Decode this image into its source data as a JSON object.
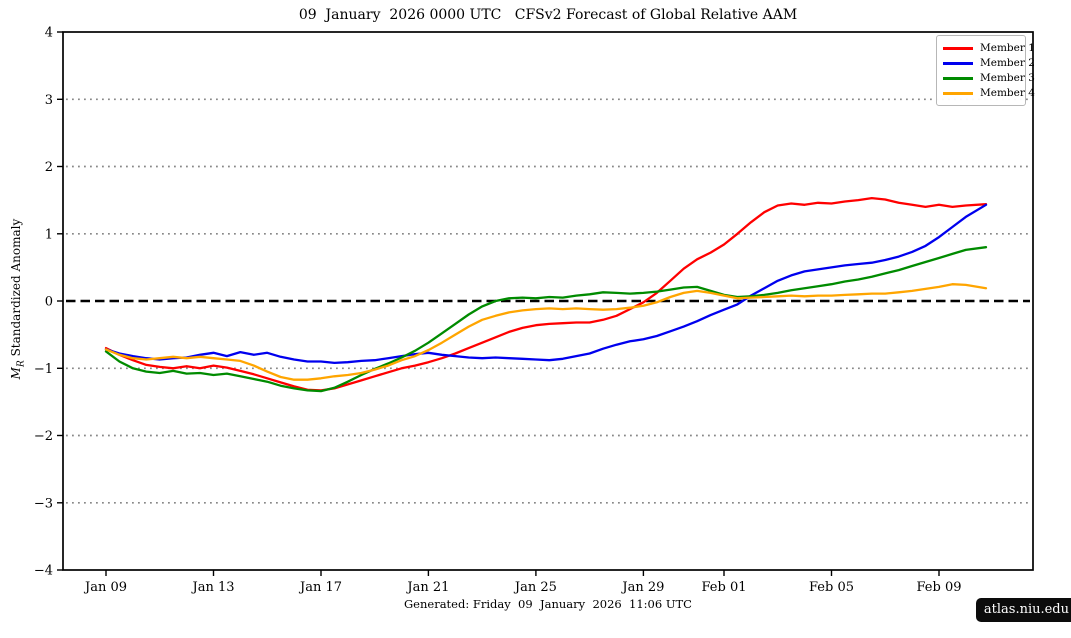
{
  "title": "09  January  2026 0000 UTC   CFSv2 Forecast of Global Relative AAM",
  "footer": "Generated: Friday  09  January  2026  11:06 UTC",
  "watermark": "atlas.niu.edu",
  "ylabel": {
    "symbol": "M",
    "subscript": "R",
    "rest": " Standardized Anomaly"
  },
  "chart_data": {
    "type": "line",
    "title": "09  January  2026 0000 UTC   CFSv2 Forecast of Global Relative AAM",
    "xlabel": "",
    "ylabel": "M_R Standardized Anomaly",
    "x_unit": "days since Jan 09 (0000 UTC)",
    "xlim_days": [
      -1.6,
      34.5
    ],
    "ylim": [
      -4,
      4
    ],
    "grid": "dotted horizontal at -3,-2,-1,1,2,3; dashed black at 0",
    "grid_levels": [
      -3,
      -2,
      -1,
      1,
      2,
      3
    ],
    "zero_level": 0,
    "grid_color": "#888888",
    "zero_line_color": "#000000",
    "frame_color": "#000000",
    "legend_position": "top-right",
    "xticks": [
      {
        "day": 0,
        "label": "Jan 09"
      },
      {
        "day": 4,
        "label": "Jan 13"
      },
      {
        "day": 8,
        "label": "Jan 17"
      },
      {
        "day": 12,
        "label": "Jan 21"
      },
      {
        "day": 16,
        "label": "Jan 25"
      },
      {
        "day": 20,
        "label": "Jan 29"
      },
      {
        "day": 23,
        "label": "Feb 01"
      },
      {
        "day": 27,
        "label": "Feb 05"
      },
      {
        "day": 31,
        "label": "Feb 09"
      }
    ],
    "yticks": [
      {
        "v": -4,
        "label": "−4"
      },
      {
        "v": -3,
        "label": "−3"
      },
      {
        "v": -2,
        "label": "−2"
      },
      {
        "v": -1,
        "label": "−1"
      },
      {
        "v": 0,
        "label": "0"
      },
      {
        "v": 1,
        "label": "1"
      },
      {
        "v": 2,
        "label": "2"
      },
      {
        "v": 3,
        "label": "3"
      },
      {
        "v": 4,
        "label": "4"
      }
    ],
    "series": [
      {
        "name": "Member 1",
        "color": "#ff0000",
        "points": [
          [
            0,
            -0.7
          ],
          [
            0.5,
            -0.8
          ],
          [
            1,
            -0.88
          ],
          [
            1.5,
            -0.95
          ],
          [
            2,
            -0.98
          ],
          [
            2.5,
            -1.0
          ],
          [
            3,
            -0.97
          ],
          [
            3.5,
            -1.0
          ],
          [
            4,
            -0.96
          ],
          [
            4.5,
            -0.99
          ],
          [
            5,
            -1.04
          ],
          [
            5.5,
            -1.09
          ],
          [
            6,
            -1.15
          ],
          [
            6.5,
            -1.21
          ],
          [
            7,
            -1.27
          ],
          [
            7.5,
            -1.32
          ],
          [
            8,
            -1.33
          ],
          [
            8.5,
            -1.3
          ],
          [
            9,
            -1.24
          ],
          [
            9.5,
            -1.18
          ],
          [
            10,
            -1.12
          ],
          [
            10.5,
            -1.06
          ],
          [
            11,
            -1.0
          ],
          [
            11.5,
            -0.96
          ],
          [
            12,
            -0.91
          ],
          [
            12.5,
            -0.85
          ],
          [
            13,
            -0.78
          ],
          [
            13.5,
            -0.7
          ],
          [
            14,
            -0.62
          ],
          [
            14.5,
            -0.54
          ],
          [
            15,
            -0.46
          ],
          [
            15.5,
            -0.4
          ],
          [
            16,
            -0.36
          ],
          [
            16.5,
            -0.34
          ],
          [
            17,
            -0.33
          ],
          [
            17.5,
            -0.32
          ],
          [
            18,
            -0.32
          ],
          [
            18.5,
            -0.28
          ],
          [
            19,
            -0.22
          ],
          [
            19.5,
            -0.12
          ],
          [
            20,
            -0.02
          ],
          [
            20.5,
            0.12
          ],
          [
            21,
            0.3
          ],
          [
            21.5,
            0.48
          ],
          [
            22,
            0.62
          ],
          [
            22.5,
            0.72
          ],
          [
            23,
            0.84
          ],
          [
            23.5,
            1.0
          ],
          [
            24,
            1.17
          ],
          [
            24.5,
            1.32
          ],
          [
            25,
            1.42
          ],
          [
            25.5,
            1.45
          ],
          [
            26,
            1.43
          ],
          [
            26.5,
            1.46
          ],
          [
            27,
            1.45
          ],
          [
            27.5,
            1.48
          ],
          [
            28,
            1.5
          ],
          [
            28.5,
            1.53
          ],
          [
            29,
            1.51
          ],
          [
            29.5,
            1.46
          ],
          [
            30,
            1.43
          ],
          [
            30.5,
            1.4
          ],
          [
            31,
            1.43
          ],
          [
            31.5,
            1.4
          ],
          [
            32,
            1.42
          ],
          [
            32.75,
            1.44
          ]
        ]
      },
      {
        "name": "Member 2",
        "color": "#0000ee",
        "points": [
          [
            0,
            -0.72
          ],
          [
            0.5,
            -0.78
          ],
          [
            1,
            -0.82
          ],
          [
            1.5,
            -0.85
          ],
          [
            2,
            -0.87
          ],
          [
            2.5,
            -0.85
          ],
          [
            3,
            -0.84
          ],
          [
            3.5,
            -0.8
          ],
          [
            4,
            -0.77
          ],
          [
            4.5,
            -0.82
          ],
          [
            5,
            -0.76
          ],
          [
            5.5,
            -0.8
          ],
          [
            6,
            -0.77
          ],
          [
            6.5,
            -0.83
          ],
          [
            7,
            -0.87
          ],
          [
            7.5,
            -0.9
          ],
          [
            8,
            -0.9
          ],
          [
            8.5,
            -0.92
          ],
          [
            9,
            -0.91
          ],
          [
            9.5,
            -0.89
          ],
          [
            10,
            -0.88
          ],
          [
            10.5,
            -0.85
          ],
          [
            11,
            -0.82
          ],
          [
            11.5,
            -0.79
          ],
          [
            12,
            -0.77
          ],
          [
            12.5,
            -0.8
          ],
          [
            13,
            -0.82
          ],
          [
            13.5,
            -0.84
          ],
          [
            14,
            -0.85
          ],
          [
            14.5,
            -0.84
          ],
          [
            15,
            -0.85
          ],
          [
            15.5,
            -0.86
          ],
          [
            16,
            -0.87
          ],
          [
            16.5,
            -0.88
          ],
          [
            17,
            -0.86
          ],
          [
            17.5,
            -0.82
          ],
          [
            18,
            -0.78
          ],
          [
            18.5,
            -0.71
          ],
          [
            19,
            -0.65
          ],
          [
            19.5,
            -0.6
          ],
          [
            20,
            -0.57
          ],
          [
            20.5,
            -0.52
          ],
          [
            21,
            -0.45
          ],
          [
            21.5,
            -0.38
          ],
          [
            22,
            -0.3
          ],
          [
            22.5,
            -0.21
          ],
          [
            23,
            -0.13
          ],
          [
            23.5,
            -0.05
          ],
          [
            24,
            0.08
          ],
          [
            24.5,
            0.19
          ],
          [
            25,
            0.3
          ],
          [
            25.5,
            0.38
          ],
          [
            26,
            0.44
          ],
          [
            26.5,
            0.47
          ],
          [
            27,
            0.5
          ],
          [
            27.5,
            0.53
          ],
          [
            28,
            0.55
          ],
          [
            28.5,
            0.57
          ],
          [
            29,
            0.61
          ],
          [
            29.5,
            0.66
          ],
          [
            30,
            0.73
          ],
          [
            30.5,
            0.82
          ],
          [
            31,
            0.95
          ],
          [
            31.5,
            1.1
          ],
          [
            32,
            1.25
          ],
          [
            32.75,
            1.43
          ]
        ]
      },
      {
        "name": "Member 3",
        "color": "#008b00",
        "points": [
          [
            0,
            -0.75
          ],
          [
            0.5,
            -0.9
          ],
          [
            1,
            -1.0
          ],
          [
            1.5,
            -1.05
          ],
          [
            2,
            -1.07
          ],
          [
            2.5,
            -1.04
          ],
          [
            3,
            -1.08
          ],
          [
            3.5,
            -1.07
          ],
          [
            4,
            -1.1
          ],
          [
            4.5,
            -1.08
          ],
          [
            5,
            -1.12
          ],
          [
            5.5,
            -1.16
          ],
          [
            6,
            -1.2
          ],
          [
            6.5,
            -1.26
          ],
          [
            7,
            -1.3
          ],
          [
            7.5,
            -1.33
          ],
          [
            8,
            -1.34
          ],
          [
            8.5,
            -1.29
          ],
          [
            9,
            -1.2
          ],
          [
            9.5,
            -1.1
          ],
          [
            10,
            -1.01
          ],
          [
            10.5,
            -0.93
          ],
          [
            11,
            -0.84
          ],
          [
            11.5,
            -0.74
          ],
          [
            12,
            -0.62
          ],
          [
            12.5,
            -0.48
          ],
          [
            13,
            -0.34
          ],
          [
            13.5,
            -0.2
          ],
          [
            14,
            -0.08
          ],
          [
            14.5,
            0.0
          ],
          [
            15,
            0.04
          ],
          [
            15.5,
            0.05
          ],
          [
            16,
            0.04
          ],
          [
            16.5,
            0.06
          ],
          [
            17,
            0.05
          ],
          [
            17.5,
            0.08
          ],
          [
            18,
            0.1
          ],
          [
            18.5,
            0.13
          ],
          [
            19,
            0.12
          ],
          [
            19.5,
            0.11
          ],
          [
            20,
            0.12
          ],
          [
            20.5,
            0.14
          ],
          [
            21,
            0.17
          ],
          [
            21.5,
            0.2
          ],
          [
            22,
            0.21
          ],
          [
            22.5,
            0.15
          ],
          [
            23,
            0.09
          ],
          [
            23.5,
            0.06
          ],
          [
            24,
            0.07
          ],
          [
            24.5,
            0.09
          ],
          [
            25,
            0.12
          ],
          [
            25.5,
            0.16
          ],
          [
            26,
            0.19
          ],
          [
            26.5,
            0.22
          ],
          [
            27,
            0.25
          ],
          [
            27.5,
            0.29
          ],
          [
            28,
            0.32
          ],
          [
            28.5,
            0.36
          ],
          [
            29,
            0.41
          ],
          [
            29.5,
            0.46
          ],
          [
            30,
            0.52
          ],
          [
            30.5,
            0.58
          ],
          [
            31,
            0.64
          ],
          [
            31.5,
            0.7
          ],
          [
            32,
            0.76
          ],
          [
            32.75,
            0.8
          ]
        ]
      },
      {
        "name": "Member 4",
        "color": "#ffa500",
        "points": [
          [
            0,
            -0.72
          ],
          [
            0.5,
            -0.8
          ],
          [
            1,
            -0.85
          ],
          [
            1.5,
            -0.87
          ],
          [
            2,
            -0.85
          ],
          [
            2.5,
            -0.83
          ],
          [
            3,
            -0.85
          ],
          [
            3.5,
            -0.83
          ],
          [
            4,
            -0.85
          ],
          [
            4.5,
            -0.87
          ],
          [
            5,
            -0.89
          ],
          [
            5.5,
            -0.96
          ],
          [
            6,
            -1.05
          ],
          [
            6.5,
            -1.13
          ],
          [
            7,
            -1.17
          ],
          [
            7.5,
            -1.17
          ],
          [
            8,
            -1.15
          ],
          [
            8.5,
            -1.12
          ],
          [
            9,
            -1.1
          ],
          [
            9.5,
            -1.07
          ],
          [
            10,
            -1.02
          ],
          [
            10.5,
            -0.96
          ],
          [
            11,
            -0.88
          ],
          [
            11.5,
            -0.82
          ],
          [
            12,
            -0.73
          ],
          [
            12.5,
            -0.62
          ],
          [
            13,
            -0.5
          ],
          [
            13.5,
            -0.38
          ],
          [
            14,
            -0.28
          ],
          [
            14.5,
            -0.22
          ],
          [
            15,
            -0.17
          ],
          [
            15.5,
            -0.14
          ],
          [
            16,
            -0.12
          ],
          [
            16.5,
            -0.11
          ],
          [
            17,
            -0.12
          ],
          [
            17.5,
            -0.11
          ],
          [
            18,
            -0.12
          ],
          [
            18.5,
            -0.13
          ],
          [
            19,
            -0.12
          ],
          [
            19.5,
            -0.1
          ],
          [
            20,
            -0.07
          ],
          [
            20.5,
            -0.02
          ],
          [
            21,
            0.06
          ],
          [
            21.5,
            0.12
          ],
          [
            22,
            0.15
          ],
          [
            22.5,
            0.12
          ],
          [
            23,
            0.08
          ],
          [
            23.5,
            0.04
          ],
          [
            24,
            0.05
          ],
          [
            24.5,
            0.06
          ],
          [
            25,
            0.07
          ],
          [
            25.5,
            0.08
          ],
          [
            26,
            0.07
          ],
          [
            26.5,
            0.08
          ],
          [
            27,
            0.08
          ],
          [
            27.5,
            0.09
          ],
          [
            28,
            0.1
          ],
          [
            28.5,
            0.11
          ],
          [
            29,
            0.11
          ],
          [
            29.5,
            0.13
          ],
          [
            30,
            0.15
          ],
          [
            30.5,
            0.18
          ],
          [
            31,
            0.21
          ],
          [
            31.5,
            0.25
          ],
          [
            32,
            0.24
          ],
          [
            32.75,
            0.19
          ]
        ]
      }
    ]
  }
}
